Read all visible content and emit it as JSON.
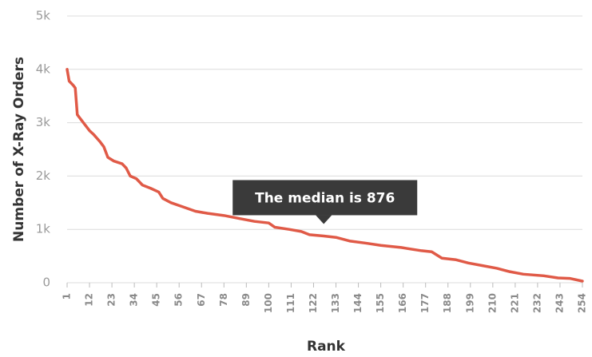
{
  "chart_data": {
    "type": "line",
    "x_label": "Rank",
    "y_label": "Number of X-Ray Orders",
    "annotation": "The median is 876",
    "annotation_x": 127,
    "annotation_y": 876,
    "xlim": [
      1,
      254
    ],
    "xticks": [
      1,
      12,
      23,
      34,
      45,
      56,
      67,
      78,
      89,
      100,
      111,
      122,
      133,
      144,
      155,
      166,
      177,
      188,
      199,
      210,
      221,
      232,
      243,
      254
    ],
    "ylim": [
      0,
      5000
    ],
    "yticks": [
      0,
      {
        "value": 1000,
        "label": "1k"
      },
      {
        "value": 2000,
        "label": "2k"
      },
      {
        "value": 3000,
        "label": "3k"
      },
      {
        "value": 4000,
        "label": "4k"
      },
      {
        "value": 5000,
        "label": "5k"
      }
    ],
    "grid": true,
    "color": "#e05a47",
    "x": [
      1,
      2,
      4,
      5,
      6,
      8,
      10,
      12,
      14,
      17,
      19,
      21,
      24,
      28,
      30,
      32,
      35,
      38,
      42,
      46,
      48,
      52,
      58,
      64,
      70,
      78,
      86,
      93,
      100,
      103,
      110,
      116,
      120,
      127,
      133,
      140,
      148,
      155,
      165,
      175,
      180,
      185,
      192,
      198,
      205,
      212,
      218,
      225,
      235,
      242,
      248,
      254
    ],
    "values": [
      4000,
      3780,
      3700,
      3650,
      3150,
      3050,
      2950,
      2850,
      2780,
      2650,
      2550,
      2350,
      2280,
      2230,
      2150,
      2000,
      1950,
      1830,
      1770,
      1700,
      1580,
      1500,
      1420,
      1340,
      1300,
      1260,
      1200,
      1150,
      1120,
      1040,
      1000,
      960,
      900,
      876,
      850,
      780,
      740,
      700,
      660,
      600,
      580,
      460,
      430,
      370,
      320,
      270,
      210,
      160,
      130,
      90,
      80,
      30
    ]
  }
}
